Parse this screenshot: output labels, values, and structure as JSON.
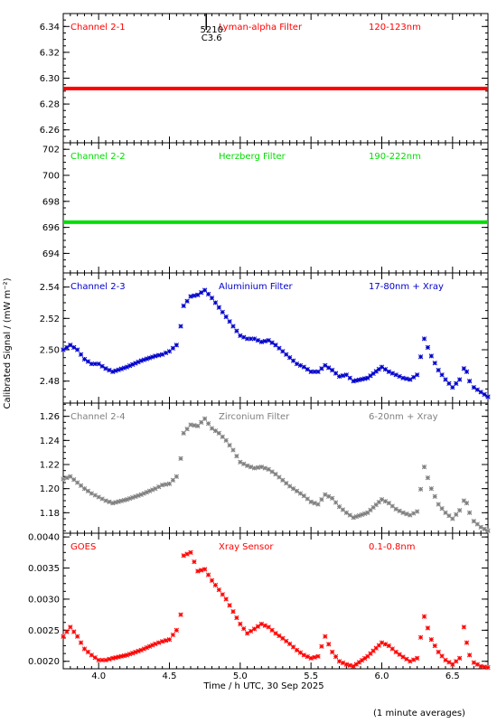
{
  "figure": {
    "ylabel": "Calibrated Signal / (mW m⁻²)",
    "xlabel": "Time / h UTC, 30 Sep 2025",
    "footnote": "(1 minute averages)"
  },
  "flare_marker": {
    "x": 4.76,
    "label_top": "5210",
    "label_bottom": "C3.6"
  },
  "chart_data": [
    {
      "type": "scatter",
      "channel": "Channel 2-1",
      "filter": "Lyman-alpha Filter",
      "band": "120-123nm",
      "color": "#ff0000",
      "ylim": [
        6.25,
        6.35
      ],
      "yticks": [
        6.26,
        6.28,
        6.3,
        6.32,
        6.34
      ],
      "xlim": [
        3.75,
        6.75
      ],
      "series": [
        {
          "x": [
            3.75,
            4.0,
            4.5,
            5.0,
            5.5,
            6.0,
            6.5,
            6.75
          ],
          "values": [
            6.292,
            6.292,
            6.292,
            6.292,
            6.292,
            6.292,
            6.292,
            6.292
          ]
        }
      ]
    },
    {
      "type": "scatter",
      "channel": "Channel 2-2",
      "filter": "Herzberg Filter",
      "band": "190-222nm",
      "color": "#00dd00",
      "ylim": [
        692.5,
        702.5
      ],
      "yticks": [
        694,
        696,
        698,
        700,
        702
      ],
      "xlim": [
        3.75,
        6.75
      ],
      "series": [
        {
          "x": [
            3.75,
            4.0,
            4.5,
            5.0,
            5.5,
            6.0,
            6.5,
            6.75
          ],
          "values": [
            696.4,
            696.4,
            696.4,
            696.4,
            696.4,
            696.4,
            696.4,
            696.4
          ]
        }
      ]
    },
    {
      "type": "scatter",
      "channel": "Channel 2-3",
      "filter": "Aluminium Filter",
      "band": "17-80nm + Xray",
      "color": "#0000cc",
      "ylim": [
        2.466,
        2.549
      ],
      "yticks": [
        2.48,
        2.5,
        2.52,
        2.54
      ],
      "xlim": [
        3.75,
        6.75
      ],
      "series": [
        {
          "x": [
            3.75,
            3.8,
            3.85,
            3.9,
            3.95,
            4.0,
            4.05,
            4.1,
            4.2,
            4.3,
            4.4,
            4.45,
            4.5,
            4.55,
            4.58,
            4.6,
            4.65,
            4.7,
            4.75,
            4.8,
            4.85,
            4.9,
            4.95,
            5.0,
            5.05,
            5.1,
            5.15,
            5.2,
            5.25,
            5.3,
            5.35,
            5.4,
            5.45,
            5.5,
            5.55,
            5.6,
            5.65,
            5.7,
            5.75,
            5.8,
            5.9,
            6.0,
            6.05,
            6.1,
            6.15,
            6.2,
            6.25,
            6.3,
            6.35,
            6.4,
            6.45,
            6.5,
            6.55,
            6.58,
            6.6,
            6.62,
            6.65,
            6.7,
            6.75
          ],
          "values": [
            2.5,
            2.503,
            2.5,
            2.494,
            2.491,
            2.491,
            2.488,
            2.486,
            2.489,
            2.493,
            2.496,
            2.497,
            2.499,
            2.503,
            2.515,
            2.528,
            2.534,
            2.535,
            2.538,
            2.533,
            2.527,
            2.521,
            2.515,
            2.509,
            2.507,
            2.507,
            2.505,
            2.506,
            2.503,
            2.499,
            2.495,
            2.491,
            2.489,
            2.486,
            2.486,
            2.49,
            2.487,
            2.483,
            2.484,
            2.48,
            2.482,
            2.489,
            2.486,
            2.484,
            2.482,
            2.481,
            2.484,
            2.507,
            2.496,
            2.487,
            2.481,
            2.476,
            2.481,
            2.488,
            2.486,
            2.48,
            2.476,
            2.473,
            2.47
          ]
        }
      ]
    },
    {
      "type": "scatter",
      "channel": "Channel 2-4",
      "filter": "Zirconium Filter",
      "band": "6-20nm + Xray",
      "color": "#808080",
      "ylim": [
        1.163,
        1.271
      ],
      "yticks": [
        1.18,
        1.2,
        1.22,
        1.24,
        1.26
      ],
      "xlim": [
        3.75,
        6.75
      ],
      "series": [
        {
          "x": [
            3.75,
            3.8,
            3.85,
            3.9,
            3.95,
            4.0,
            4.05,
            4.1,
            4.2,
            4.3,
            4.4,
            4.45,
            4.5,
            4.55,
            4.58,
            4.6,
            4.65,
            4.7,
            4.75,
            4.8,
            4.85,
            4.9,
            4.95,
            5.0,
            5.05,
            5.1,
            5.15,
            5.2,
            5.25,
            5.3,
            5.35,
            5.4,
            5.45,
            5.5,
            5.55,
            5.6,
            5.65,
            5.7,
            5.75,
            5.8,
            5.9,
            6.0,
            6.05,
            6.1,
            6.15,
            6.2,
            6.25,
            6.3,
            6.35,
            6.4,
            6.45,
            6.5,
            6.55,
            6.58,
            6.6,
            6.62,
            6.65,
            6.7,
            6.75
          ],
          "values": [
            1.208,
            1.21,
            1.205,
            1.2,
            1.196,
            1.193,
            1.19,
            1.188,
            1.191,
            1.195,
            1.2,
            1.203,
            1.204,
            1.21,
            1.225,
            1.246,
            1.253,
            1.252,
            1.258,
            1.25,
            1.246,
            1.24,
            1.232,
            1.222,
            1.219,
            1.217,
            1.218,
            1.216,
            1.212,
            1.207,
            1.202,
            1.198,
            1.194,
            1.189,
            1.187,
            1.195,
            1.192,
            1.185,
            1.18,
            1.176,
            1.18,
            1.191,
            1.188,
            1.183,
            1.18,
            1.178,
            1.181,
            1.218,
            1.2,
            1.187,
            1.18,
            1.175,
            1.182,
            1.19,
            1.188,
            1.18,
            1.173,
            1.168,
            1.165
          ]
        }
      ]
    },
    {
      "type": "scatter",
      "channel": "GOES",
      "filter": "Xray Sensor",
      "band": "0.1-0.8nm",
      "color": "#ff0000",
      "ylim": [
        0.00188,
        0.00406
      ],
      "yticks": [
        0.002,
        0.0025,
        0.003,
        0.0035,
        0.004
      ],
      "xlim": [
        3.75,
        6.75
      ],
      "series": [
        {
          "x": [
            3.75,
            3.8,
            3.85,
            3.9,
            3.95,
            4.0,
            4.05,
            4.1,
            4.2,
            4.3,
            4.4,
            4.45,
            4.5,
            4.55,
            4.58,
            4.6,
            4.65,
            4.7,
            4.75,
            4.8,
            4.85,
            4.9,
            4.95,
            5.0,
            5.05,
            5.1,
            5.15,
            5.2,
            5.25,
            5.3,
            5.35,
            5.4,
            5.45,
            5.5,
            5.55,
            5.6,
            5.65,
            5.7,
            5.75,
            5.8,
            5.9,
            6.0,
            6.05,
            6.1,
            6.15,
            6.2,
            6.25,
            6.3,
            6.35,
            6.4,
            6.45,
            6.5,
            6.55,
            6.58,
            6.6,
            6.62,
            6.65,
            6.7,
            6.75
          ],
          "values": [
            0.0024,
            0.00255,
            0.0024,
            0.0022,
            0.0021,
            0.00202,
            0.00202,
            0.00205,
            0.0021,
            0.00218,
            0.00228,
            0.00232,
            0.00235,
            0.0025,
            0.00275,
            0.0037,
            0.00375,
            0.00345,
            0.00348,
            0.0033,
            0.00315,
            0.003,
            0.0028,
            0.0026,
            0.00245,
            0.00252,
            0.0026,
            0.00255,
            0.00245,
            0.00237,
            0.00228,
            0.00218,
            0.0021,
            0.00205,
            0.00208,
            0.0024,
            0.00215,
            0.002,
            0.00195,
            0.00192,
            0.00208,
            0.0023,
            0.00225,
            0.00215,
            0.00207,
            0.002,
            0.00205,
            0.00272,
            0.00235,
            0.00215,
            0.00202,
            0.00195,
            0.00205,
            0.00255,
            0.0023,
            0.0021,
            0.00198,
            0.00192,
            0.0019
          ]
        }
      ]
    }
  ]
}
